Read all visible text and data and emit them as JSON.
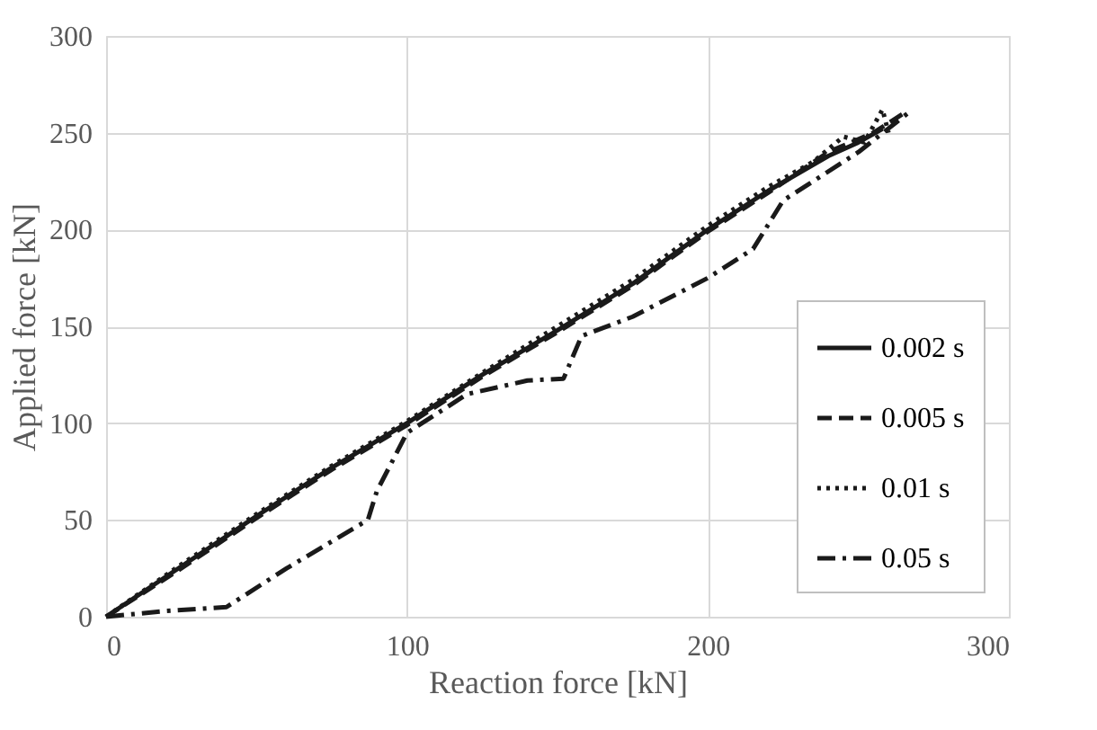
{
  "chart_data": {
    "type": "line",
    "xlabel": "Reaction force [kN]",
    "ylabel": "Applied force [kN]",
    "xlim": [
      0,
      300
    ],
    "xticks": [
      0,
      100,
      200,
      300
    ],
    "ylim": [
      0,
      300
    ],
    "yticks": [
      0,
      50,
      100,
      150,
      200,
      250,
      300
    ],
    "grid": true,
    "legend": "bottom right",
    "marker": "none",
    "series": [
      {
        "name": "0.002 s",
        "color": "#1a1a1a",
        "line_style": "solid",
        "x": [
          0,
          25,
          50,
          75,
          100,
          125,
          150,
          175,
          200,
          220,
          240,
          250,
          258
        ],
        "values": [
          0,
          26,
          52,
          77,
          100,
          125,
          148,
          172,
          200,
          220,
          238,
          245,
          252
        ]
      },
      {
        "name": "0.005 s",
        "color": "#1a1a1a",
        "line_style": "dashed",
        "x": [
          0,
          25,
          50,
          75,
          100,
          125,
          150,
          175,
          200,
          220,
          240,
          255,
          265
        ],
        "values": [
          0,
          25,
          51,
          76,
          99,
          124,
          147,
          171,
          199,
          219,
          240,
          250,
          260
        ]
      },
      {
        "name": "0.01 s",
        "color": "#1a1a1a",
        "line_style": "dotted",
        "x": [
          0,
          25,
          50,
          75,
          100,
          125,
          150,
          175,
          200,
          220,
          235,
          245,
          252,
          258,
          260
        ],
        "values": [
          0,
          27,
          53,
          78,
          101,
          126,
          150,
          174,
          202,
          222,
          235,
          248,
          245,
          262,
          250
        ]
      },
      {
        "name": "0.05 s",
        "color": "#1a1a1a",
        "line_style": "dashdot",
        "x": [
          0,
          20,
          40,
          60,
          87,
          90,
          100,
          120,
          140,
          152,
          158,
          175,
          200,
          215,
          225,
          250,
          268
        ],
        "values": [
          0,
          3,
          5,
          25,
          50,
          65,
          95,
          115,
          122,
          123,
          145,
          155,
          175,
          190,
          215,
          240,
          262
        ]
      }
    ]
  }
}
